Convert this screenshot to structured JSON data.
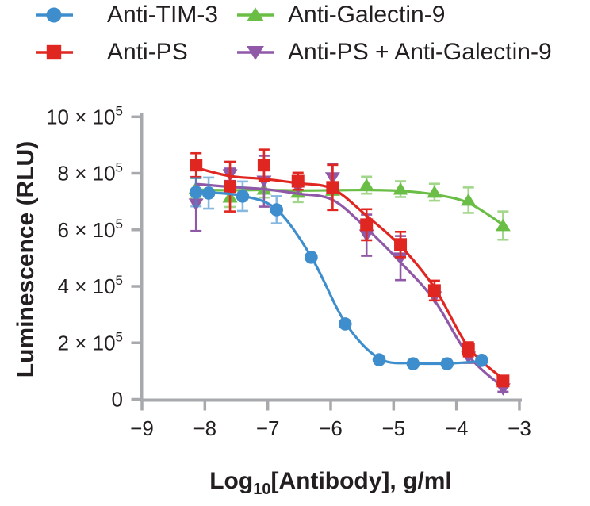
{
  "figure": {
    "background": "#ffffff",
    "text_color": "#231f20",
    "axis_color": "#a7a9ac"
  },
  "chart_data": {
    "type": "line",
    "title": "",
    "ylabel": "Luminescence (RLU)",
    "xlabel_parts": {
      "base": "Log",
      "sub": "10",
      "rest": "[Antibody], g/ml"
    },
    "y_values_scale": "1e5 RLU",
    "legend_position": "top",
    "grid": false,
    "x_axis": {
      "min": -9,
      "max": -3,
      "tick_values": [
        -9,
        -8,
        -7,
        -6,
        -5,
        -4,
        -3
      ],
      "tick_labels": [
        "−9",
        "−8",
        "−7",
        "−6",
        "−5",
        "−4",
        "−3"
      ]
    },
    "y_axis": {
      "min": 0,
      "max": 10,
      "tick_values": [
        0,
        2,
        4,
        6,
        8,
        10
      ],
      "tick_labels": [
        {
          "base": "0",
          "sup": ""
        },
        {
          "base": "2 × 10",
          "sup": "5"
        },
        {
          "base": "4 × 10",
          "sup": "5"
        },
        {
          "base": "6 × 10",
          "sup": "5"
        },
        {
          "base": "8 × 10",
          "sup": "5"
        },
        {
          "base": "10 × 10",
          "sup": "5"
        }
      ]
    },
    "series": [
      {
        "name": "Anti-TIM-3",
        "color": "#3E8ECD",
        "marker": "circle",
        "err_soft": true,
        "points": [
          {
            "x": -8.14,
            "y": 7.33,
            "e": 0.5
          },
          {
            "x": -7.94,
            "y": 7.3,
            "e": 0.55
          },
          {
            "x": -7.4,
            "y": 7.19,
            "e": 0.52
          },
          {
            "x": -6.86,
            "y": 6.71,
            "e": 0.48
          },
          {
            "x": -6.31,
            "y": 5.03,
            "e": 0
          },
          {
            "x": -5.77,
            "y": 2.67,
            "e": 0
          },
          {
            "x": -5.23,
            "y": 1.4,
            "e": 0
          },
          {
            "x": -4.69,
            "y": 1.26,
            "e": 0
          },
          {
            "x": -4.15,
            "y": 1.26,
            "e": 0
          },
          {
            "x": -3.6,
            "y": 1.38,
            "e": 0
          }
        ],
        "curve": [
          [
            -8.14,
            7.35
          ],
          [
            -7.94,
            7.32
          ],
          [
            -7.4,
            7.2
          ],
          [
            -6.86,
            6.72
          ],
          [
            -6.31,
            5.05
          ],
          [
            -5.77,
            2.72
          ],
          [
            -5.23,
            1.45
          ],
          [
            -4.69,
            1.28
          ],
          [
            -4.15,
            1.27
          ],
          [
            -3.6,
            1.35
          ]
        ]
      },
      {
        "name": "Anti-PS",
        "color": "#E02620",
        "marker": "square",
        "err_soft": false,
        "points": [
          {
            "x": -8.14,
            "y": 8.29,
            "e": 0.42
          },
          {
            "x": -7.6,
            "y": 7.53,
            "e": 0.88
          },
          {
            "x": -7.06,
            "y": 8.29,
            "e": 0.55
          },
          {
            "x": -6.52,
            "y": 7.72,
            "e": 0.3
          },
          {
            "x": -5.97,
            "y": 7.5,
            "e": 0.8
          },
          {
            "x": -5.43,
            "y": 6.18,
            "e": 0.55
          },
          {
            "x": -4.89,
            "y": 5.48,
            "e": 0.45
          },
          {
            "x": -4.35,
            "y": 3.85,
            "e": 0.35
          },
          {
            "x": -3.81,
            "y": 1.77,
            "e": 0.25
          },
          {
            "x": -3.26,
            "y": 0.65,
            "e": 0.12
          }
        ],
        "curve": [
          [
            -8.14,
            8.2
          ],
          [
            -7.6,
            7.9
          ],
          [
            -7.06,
            7.8
          ],
          [
            -6.52,
            7.65
          ],
          [
            -5.97,
            7.45
          ],
          [
            -5.43,
            6.5
          ],
          [
            -4.89,
            5.43
          ],
          [
            -4.35,
            3.95
          ],
          [
            -3.81,
            1.85
          ],
          [
            -3.26,
            0.72
          ]
        ]
      },
      {
        "name": "Anti-Galectin-9",
        "color": "#6ABE45",
        "marker": "triangle-up",
        "err_soft": true,
        "points": [
          {
            "x": -8.14,
            "y": 7.48,
            "e": 0.35
          },
          {
            "x": -7.6,
            "y": 7.16,
            "e": 0.35
          },
          {
            "x": -7.06,
            "y": 7.44,
            "e": 0.3
          },
          {
            "x": -6.52,
            "y": 7.33,
            "e": 0.35
          },
          {
            "x": -5.97,
            "y": 7.4,
            "e": 0
          },
          {
            "x": -5.43,
            "y": 7.58,
            "e": 0.3
          },
          {
            "x": -4.89,
            "y": 7.44,
            "e": 0.28
          },
          {
            "x": -4.35,
            "y": 7.33,
            "e": 0.3
          },
          {
            "x": -3.81,
            "y": 7.05,
            "e": 0.45
          },
          {
            "x": -3.26,
            "y": 6.15,
            "e": 0.5
          }
        ],
        "curve": [
          [
            -8.14,
            7.42
          ],
          [
            -7.6,
            7.4
          ],
          [
            -7.06,
            7.41
          ],
          [
            -6.52,
            7.39
          ],
          [
            -5.97,
            7.4
          ],
          [
            -5.43,
            7.41
          ],
          [
            -4.89,
            7.38
          ],
          [
            -4.35,
            7.25
          ],
          [
            -3.81,
            6.95
          ],
          [
            -3.26,
            6.18
          ]
        ]
      },
      {
        "name": "Anti-PS + Anti-Galectin-9",
        "color": "#9059A8",
        "marker": "triangle-down",
        "err_soft": false,
        "points": [
          {
            "x": -8.14,
            "y": 6.91,
            "e": 0.95
          },
          {
            "x": -7.6,
            "y": 7.95,
            "e": 0.22
          },
          {
            "x": -7.06,
            "y": 7.72,
            "e": 0.9
          },
          {
            "x": -6.52,
            "y": 7.5,
            "e": 0
          },
          {
            "x": -5.97,
            "y": 7.84,
            "e": 0.5
          },
          {
            "x": -5.43,
            "y": 5.81,
            "e": 0.73
          },
          {
            "x": -4.89,
            "y": 5.0,
            "e": 0.78
          },
          {
            "x": -4.35,
            "y": 3.62,
            "e": 0
          },
          {
            "x": -3.81,
            "y": 1.49,
            "e": 0.2
          },
          {
            "x": -3.26,
            "y": 0.37,
            "e": 0.1
          }
        ],
        "curve": [
          [
            -8.14,
            7.62
          ],
          [
            -7.6,
            7.52
          ],
          [
            -7.06,
            7.44
          ],
          [
            -6.52,
            7.28
          ],
          [
            -5.97,
            7.06
          ],
          [
            -5.43,
            6.05
          ],
          [
            -4.89,
            4.85
          ],
          [
            -4.35,
            3.5
          ],
          [
            -3.81,
            1.55
          ],
          [
            -3.26,
            0.42
          ]
        ]
      }
    ]
  }
}
